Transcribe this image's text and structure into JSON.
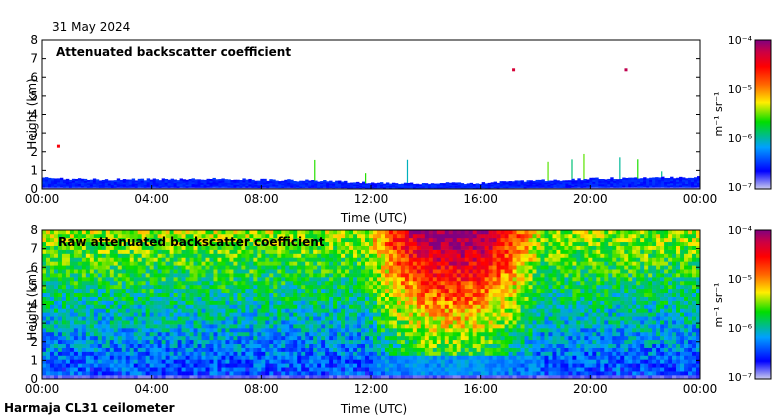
{
  "date_label": "31 May 2024",
  "footer_label": "Harmaja CL31 ceilometer",
  "colorbar_unit": "m⁻¹ sr⁻¹",
  "colorbar_ticks": [
    "10⁻⁴",
    "10⁻⁵",
    "10⁻⁶",
    "10⁻⁷"
  ],
  "colorbar_stops": [
    "#ccccee",
    "#0000ff",
    "#00a0ff",
    "#00dd00",
    "#ffee00",
    "#ff6600",
    "#ff0000",
    "#cc0044",
    "#800080"
  ],
  "chart_data": [
    {
      "type": "heatmap",
      "title": "Attenuated backscatter coefficient",
      "xlabel": "Time (UTC)",
      "ylabel": "Height (km)",
      "x_tick_labels": [
        "00:00",
        "04:00",
        "08:00",
        "12:00",
        "16:00",
        "20:00",
        "00:00"
      ],
      "y_tick_labels": [
        "0",
        "1",
        "2",
        "3",
        "4",
        "5",
        "6",
        "7",
        "8"
      ],
      "xlim_hours": [
        0,
        24
      ],
      "ylim_km": [
        0,
        8
      ],
      "colorbar_log10_range": [
        -7,
        -4
      ],
      "boundary_layer_top_km": [
        [
          0,
          0.6
        ],
        [
          2,
          0.5
        ],
        [
          6,
          0.55
        ],
        [
          10,
          0.45
        ],
        [
          12,
          0.35
        ],
        [
          14,
          0.3
        ],
        [
          16,
          0.32
        ],
        [
          18,
          0.45
        ],
        [
          20,
          0.55
        ],
        [
          22,
          0.6
        ],
        [
          24,
          0.65
        ]
      ],
      "features": [
        {
          "time_h": 0.6,
          "height_km": 2.3,
          "log10_value": -4.5
        },
        {
          "time_h": 21.3,
          "height_km": 6.4,
          "log10_value": -4.2
        },
        {
          "time_h": 17.2,
          "height_km": 6.4,
          "log10_value": -4.3
        }
      ]
    },
    {
      "type": "heatmap",
      "title": "Raw attenuated backscatter coefficient",
      "xlabel": "Time (UTC)",
      "ylabel": "Height (km)",
      "x_tick_labels": [
        "00:00",
        "04:00",
        "08:00",
        "12:00",
        "16:00",
        "20:00",
        "00:00"
      ],
      "y_tick_labels": [
        "0",
        "1",
        "2",
        "3",
        "4",
        "5",
        "6",
        "7",
        "8"
      ],
      "xlim_hours": [
        0,
        24
      ],
      "ylim_km": [
        0,
        8
      ],
      "colorbar_log10_range": [
        -7,
        -4
      ],
      "noise_maximum_window_hours": [
        13,
        17
      ],
      "noise_maximum_log10_value": -4.3
    }
  ]
}
